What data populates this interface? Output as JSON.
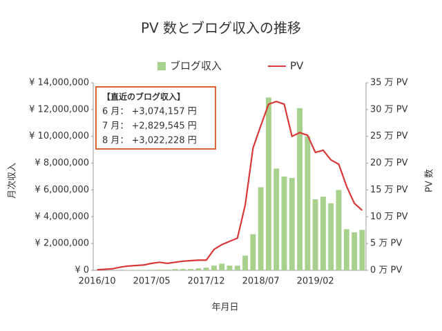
{
  "chart_data": {
    "type": "bar-line",
    "title": "PV 数とブログ収入の推移",
    "x_label": "年月日",
    "y_label": "月次収入",
    "y2_label": "PV 数",
    "categories": [
      "2016/10",
      null,
      null,
      null,
      null,
      null,
      null,
      "2017/05",
      null,
      null,
      null,
      null,
      null,
      null,
      "2017/12",
      null,
      null,
      null,
      null,
      null,
      null,
      "2018/07",
      null,
      null,
      null,
      null,
      null,
      null,
      "2019/02",
      null,
      null,
      null,
      null,
      null,
      null
    ],
    "series": [
      {
        "name": "ブログ収入",
        "type": "bar",
        "color": "#a9d18e",
        "values": [
          0,
          0,
          0,
          0,
          0.02,
          0.03,
          0.03,
          0.04,
          0.05,
          0.05,
          0.1,
          0.1,
          0.1,
          0.15,
          0.2,
          0.35,
          0.5,
          0.35,
          0.35,
          1.1,
          2.7,
          6.2,
          12.9,
          7.6,
          7.0,
          6.9,
          12.1,
          10.0,
          5.3,
          5.5,
          5.0,
          6.0,
          3.07,
          2.83,
          3.02
        ]
      },
      {
        "name": "PV",
        "type": "line",
        "axis": "y2",
        "color": "#d93636",
        "values": [
          0.1,
          0.2,
          0.3,
          0.6,
          0.8,
          0.9,
          1.0,
          1.3,
          1.5,
          1.3,
          1.5,
          1.7,
          1.8,
          1.9,
          1.9,
          3.9,
          4.8,
          5.4,
          6.0,
          12.2,
          22.8,
          27.0,
          31.0,
          31.5,
          31.0,
          25.0,
          25.7,
          25.2,
          22.0,
          22.4,
          20.6,
          19.8,
          15.7,
          12.5,
          11.2
        ]
      }
    ],
    "ylim": [
      0,
      14
    ],
    "yticks": [
      {
        "value": 0,
        "label": "¥ 0"
      },
      {
        "value": 2,
        "label": "¥ 2,000,000"
      },
      {
        "value": 4,
        "label": "¥ 4,000,000"
      },
      {
        "value": 6,
        "label": "¥ 6,000,000"
      },
      {
        "value": 8,
        "label": "¥ 8,000,000"
      },
      {
        "value": 10,
        "label": "¥ 10,000,000"
      },
      {
        "value": 12,
        "label": "¥ 12,000,000"
      },
      {
        "value": 14,
        "label": "¥ 14,000,000"
      }
    ],
    "y2lim": [
      0,
      35
    ],
    "y2ticks": [
      {
        "value": 0,
        "label": "0 万 PV"
      },
      {
        "value": 5,
        "label": "5 万 PV"
      },
      {
        "value": 10,
        "label": "10 万 PV"
      },
      {
        "value": 15,
        "label": "15 万 PV"
      },
      {
        "value": 20,
        "label": "20 万 PV"
      },
      {
        "value": 25,
        "label": "25 万 PV"
      },
      {
        "value": 30,
        "label": "30 万 PV"
      },
      {
        "value": 35,
        "label": "35 万 PV"
      }
    ],
    "annotation": {
      "title": "【直近のブログ収入】",
      "lines": [
        "6 月： +3,074,157 円",
        "7 月： +2,829,545 円",
        "8 月： +3,022,228 円"
      ],
      "color": "#e06030"
    }
  }
}
